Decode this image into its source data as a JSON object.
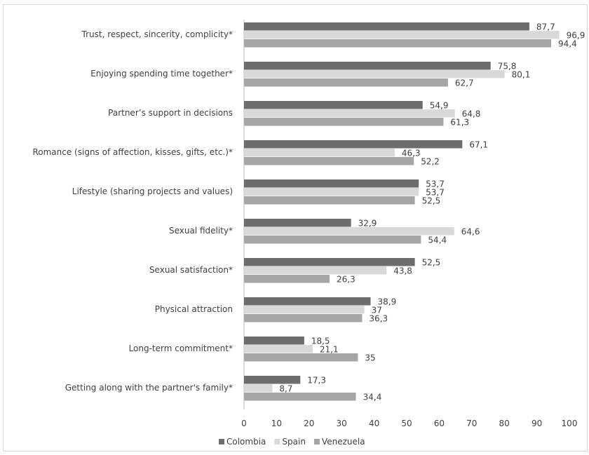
{
  "chart_data": {
    "type": "bar",
    "orientation": "horizontal",
    "categories": [
      "Trust, respect, sincerity, complicity*",
      "Enjoying spending time together*",
      "Partner’s support in decisions",
      "Romance (signs of affection, kisses, gifts, etc.)*",
      "Lifestyle (sharing projects and values)",
      "Sexual fidelity*",
      "Sexual satisfaction*",
      "Physical attraction",
      "Long-term commitment*",
      "Getting along with the partner's family*"
    ],
    "series": [
      {
        "name": "Colombia",
        "color": "#6d6d6d",
        "values": [
          87.7,
          75.8,
          54.9,
          67.1,
          53.7,
          32.9,
          52.5,
          38.9,
          18.5,
          17.3
        ],
        "labels": [
          "87,7",
          "75,8",
          "54,9",
          "67,1",
          "53,7",
          "32,9",
          "52,5",
          "38,9",
          "18,5",
          "17,3"
        ]
      },
      {
        "name": "Spain",
        "color": "#d9d9d9",
        "values": [
          96.9,
          80.1,
          64.8,
          46.3,
          53.7,
          64.6,
          43.8,
          37,
          21.1,
          8.7
        ],
        "labels": [
          "96,9",
          "80,1",
          "64,8",
          "46,3",
          "53,7",
          "64,6",
          "43,8",
          "37",
          "21,1",
          "8,7"
        ]
      },
      {
        "name": "Venezuela",
        "color": "#a6a6a6",
        "values": [
          94.4,
          62.7,
          61.3,
          52.2,
          52.5,
          54.4,
          26.3,
          36.3,
          35,
          34.4
        ],
        "labels": [
          "94,4",
          "62,7",
          "61,3",
          "52,2",
          "52,5",
          "54,4",
          "26,3",
          "36,3",
          "35",
          "34,4"
        ]
      }
    ],
    "xlim": [
      0,
      100
    ],
    "xticks": [
      "0",
      "10",
      "20",
      "30",
      "40",
      "50",
      "60",
      "70",
      "80",
      "90",
      "100"
    ],
    "grid": false,
    "legend_position": "bottom-left"
  }
}
